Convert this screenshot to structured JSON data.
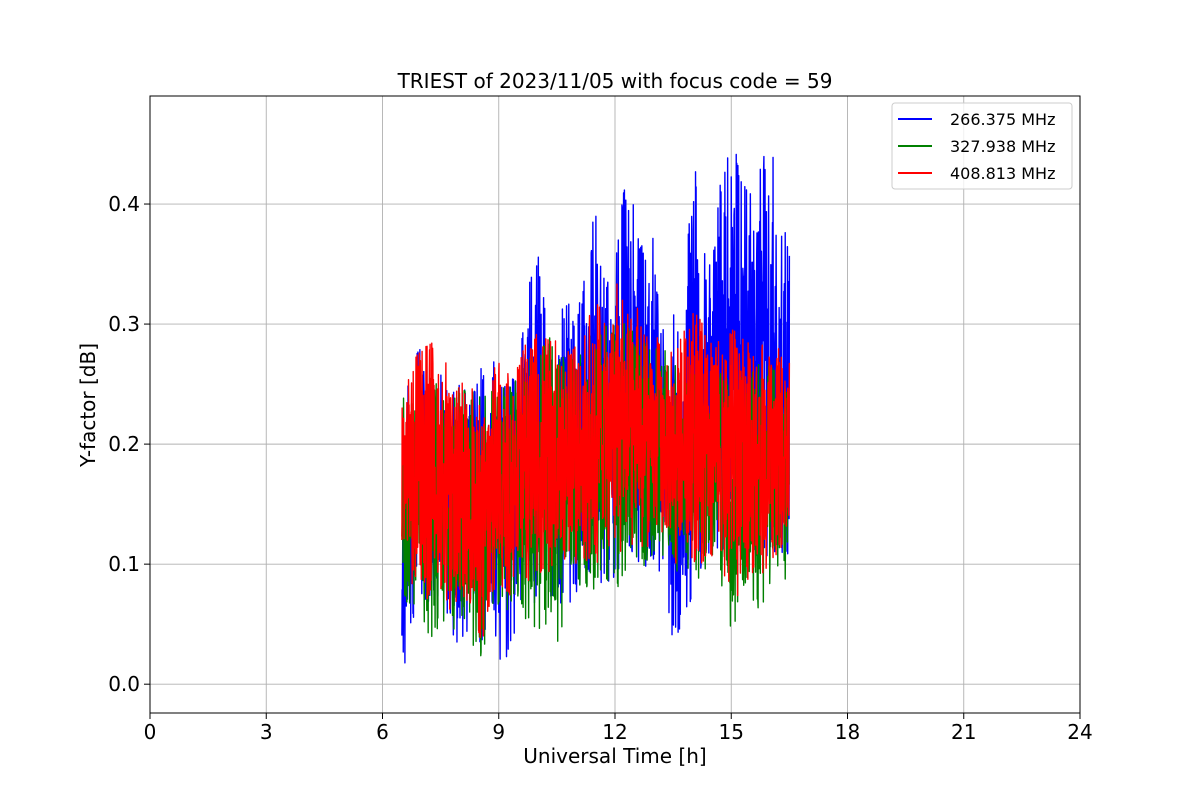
{
  "chart_data": {
    "type": "line",
    "title": "TRIEST of 2023/11/05 with focus code = 59",
    "xlabel": "Universal Time [h]",
    "ylabel": "Y-factor [dB]",
    "xlim": [
      0,
      24
    ],
    "ylim": [
      -0.024,
      0.49
    ],
    "xticks": [
      0,
      3,
      6,
      9,
      12,
      15,
      18,
      21,
      24
    ],
    "xtick_labels": [
      "0",
      "3",
      "6",
      "9",
      "12",
      "15",
      "18",
      "21",
      "24"
    ],
    "yticks": [
      0.0,
      0.1,
      0.2,
      0.3,
      0.4
    ],
    "ytick_labels": [
      "0.0",
      "0.1",
      "0.2",
      "0.3",
      "0.4"
    ],
    "grid": true,
    "legend_position": "top-right",
    "series": [
      {
        "name": "266.375 MHz",
        "color": "#0000ff",
        "x": [
          6.5,
          6.6,
          6.75,
          7.0,
          7.25,
          7.5,
          7.75,
          8.0,
          8.25,
          8.5,
          8.75,
          9.0,
          9.25,
          9.5,
          9.75,
          10.0,
          10.25,
          10.5,
          10.75,
          11.0,
          11.25,
          11.5,
          11.75,
          12.0,
          12.25,
          12.5,
          12.75,
          13.0,
          13.25,
          13.5,
          13.75,
          14.0,
          14.25,
          14.5,
          14.75,
          15.0,
          15.25,
          15.5,
          15.75,
          16.0,
          16.25,
          16.5
        ],
        "y_min": [
          0.0,
          0.02,
          0.05,
          0.06,
          0.07,
          0.07,
          0.04,
          0.02,
          0.04,
          0.03,
          0.03,
          0.02,
          0.02,
          0.03,
          0.06,
          0.07,
          0.07,
          0.07,
          0.06,
          0.07,
          0.08,
          0.09,
          0.08,
          0.09,
          0.1,
          0.1,
          0.1,
          0.09,
          0.07,
          0.03,
          0.05,
          0.06,
          0.1,
          0.1,
          0.11,
          0.1,
          0.1,
          0.11,
          0.1,
          0.1,
          0.11,
          0.1
        ],
        "y_max": [
          0.26,
          0.25,
          0.25,
          0.3,
          0.28,
          0.26,
          0.25,
          0.25,
          0.25,
          0.26,
          0.28,
          0.26,
          0.25,
          0.26,
          0.33,
          0.37,
          0.3,
          0.3,
          0.33,
          0.31,
          0.35,
          0.4,
          0.33,
          0.36,
          0.42,
          0.4,
          0.36,
          0.39,
          0.33,
          0.31,
          0.29,
          0.46,
          0.38,
          0.36,
          0.43,
          0.47,
          0.42,
          0.41,
          0.43,
          0.46,
          0.43,
          0.36
        ]
      },
      {
        "name": "327.938 MHz",
        "color": "#008000",
        "x": [
          6.5,
          6.6,
          6.75,
          7.0,
          7.25,
          7.5,
          7.75,
          8.0,
          8.25,
          8.5,
          8.75,
          9.0,
          9.25,
          9.5,
          9.75,
          10.0,
          10.25,
          10.5,
          10.75,
          11.0,
          11.25,
          11.5,
          11.75,
          12.0,
          12.25,
          12.5,
          12.75,
          13.0,
          13.25,
          13.5,
          13.75,
          14.0,
          14.25,
          14.5,
          14.75,
          15.0,
          15.25,
          15.5,
          15.75,
          16.0,
          16.25,
          16.5
        ],
        "y_min": [
          0.1,
          0.06,
          0.05,
          0.06,
          0.03,
          0.05,
          0.04,
          0.05,
          0.05,
          0.0,
          0.05,
          0.05,
          0.06,
          0.07,
          0.05,
          0.04,
          0.05,
          0.03,
          0.06,
          0.07,
          0.07,
          0.08,
          0.08,
          0.08,
          0.08,
          0.09,
          0.09,
          0.08,
          0.09,
          0.08,
          0.1,
          0.09,
          0.08,
          0.09,
          0.08,
          0.03,
          0.07,
          0.06,
          0.06,
          0.08,
          0.08,
          0.09
        ],
        "y_max": [
          0.24,
          0.25,
          0.25,
          0.26,
          0.26,
          0.25,
          0.25,
          0.25,
          0.25,
          0.24,
          0.25,
          0.25,
          0.26,
          0.26,
          0.27,
          0.28,
          0.3,
          0.27,
          0.28,
          0.28,
          0.29,
          0.29,
          0.3,
          0.3,
          0.31,
          0.29,
          0.29,
          0.28,
          0.28,
          0.27,
          0.27,
          0.27,
          0.26,
          0.26,
          0.26,
          0.25,
          0.26,
          0.26,
          0.27,
          0.27,
          0.27,
          0.27
        ]
      },
      {
        "name": "408.813 MHz",
        "color": "#ff0000",
        "x": [
          6.5,
          6.6,
          6.75,
          7.0,
          7.25,
          7.5,
          7.75,
          8.0,
          8.25,
          8.5,
          8.75,
          9.0,
          9.25,
          9.5,
          9.75,
          10.0,
          10.25,
          10.5,
          10.75,
          11.0,
          11.25,
          11.5,
          11.75,
          12.0,
          12.25,
          12.5,
          12.75,
          13.0,
          13.25,
          13.5,
          13.75,
          14.0,
          14.25,
          14.5,
          14.75,
          15.0,
          15.25,
          15.5,
          15.75,
          16.0,
          16.25,
          16.5
        ],
        "y_min": [
          0.12,
          0.1,
          0.08,
          0.07,
          0.07,
          0.08,
          0.06,
          0.06,
          0.07,
          0.0,
          0.06,
          0.07,
          0.07,
          0.08,
          0.08,
          0.09,
          0.09,
          0.08,
          0.1,
          0.1,
          0.1,
          0.1,
          0.1,
          0.11,
          0.1,
          0.1,
          0.1,
          0.1,
          0.1,
          0.1,
          0.1,
          0.1,
          0.1,
          0.1,
          0.1,
          0.06,
          0.08,
          0.09,
          0.09,
          0.1,
          0.1,
          0.12
        ],
        "y_max": [
          0.26,
          0.27,
          0.29,
          0.28,
          0.29,
          0.27,
          0.27,
          0.26,
          0.26,
          0.25,
          0.26,
          0.27,
          0.26,
          0.27,
          0.29,
          0.3,
          0.29,
          0.3,
          0.29,
          0.29,
          0.3,
          0.32,
          0.33,
          0.34,
          0.33,
          0.32,
          0.3,
          0.29,
          0.29,
          0.29,
          0.29,
          0.32,
          0.31,
          0.3,
          0.3,
          0.3,
          0.29,
          0.29,
          0.29,
          0.28,
          0.28,
          0.27
        ]
      }
    ]
  }
}
